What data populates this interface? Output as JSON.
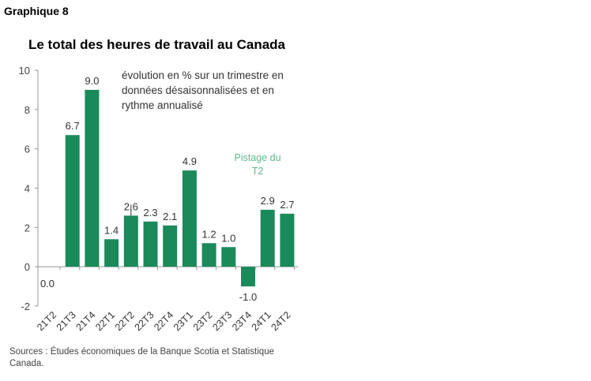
{
  "header": {
    "graph_label": "Graphique 8"
  },
  "chart_data": {
    "type": "bar",
    "title": "Le total des heures de travail au Canada",
    "subtitle": "évolution en % sur un trimestre en données désaisonnalisées et en rythme annualisé",
    "categories": [
      "21T2",
      "21T3",
      "21T4",
      "22T1",
      "22T2",
      "22T3",
      "22T4",
      "23T1",
      "23T2",
      "23T3",
      "23T4",
      "24T1",
      "24T2"
    ],
    "values": [
      0.0,
      6.7,
      9.0,
      1.4,
      2.6,
      2.3,
      2.1,
      4.9,
      1.2,
      1.0,
      -1.0,
      2.9,
      2.7
    ],
    "value_labels": [
      "0.0",
      "6.7",
      "9.0",
      "1.4",
      "2.6",
      "2.3",
      "2.1",
      "4.9",
      "1.2",
      "1.0",
      "-1.0",
      "2.9",
      "2.7"
    ],
    "yticks": [
      "10",
      "8",
      "6",
      "4",
      "2",
      "0",
      "-2"
    ],
    "ylim": [
      -2,
      10
    ],
    "annotation": "Pistage du T2",
    "bar_color": "#1a8a5a",
    "annotation_color": "#5fb98a",
    "grid": false,
    "source": "Sources : Études économiques de la Banque Scotia et Statistique Canada."
  }
}
